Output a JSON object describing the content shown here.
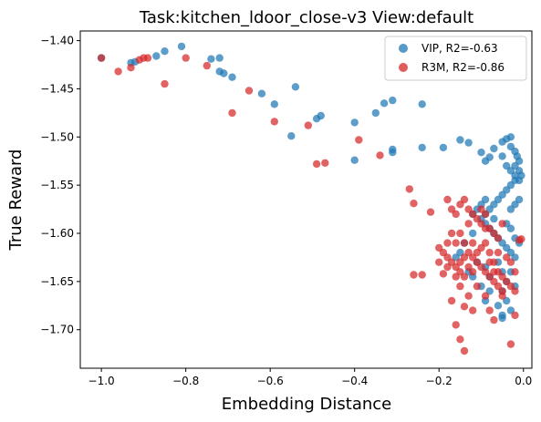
{
  "chart_data": {
    "type": "scatter",
    "title": "Task:kitchen_ldoor_close-v3 View:default",
    "xlabel": "Embedding Distance",
    "ylabel": "True Reward",
    "xlim": [
      -1.05,
      0.02
    ],
    "ylim": [
      -1.74,
      -1.39
    ],
    "xticks": [
      -1.0,
      -0.8,
      -0.6,
      -0.4,
      -0.2,
      0.0
    ],
    "xtick_labels": [
      "−1.0",
      "−0.8",
      "−0.6",
      "−0.4",
      "−0.2",
      "0.0"
    ],
    "yticks": [
      -1.4,
      -1.45,
      -1.5,
      -1.55,
      -1.6,
      -1.65,
      -1.7
    ],
    "ytick_labels": [
      "−1.40",
      "−1.45",
      "−1.50",
      "−1.55",
      "−1.60",
      "−1.65",
      "−1.70"
    ],
    "grid": false,
    "legend": "top-right",
    "series": [
      {
        "name": "VIP, R2=-0.63",
        "color": "#1f77b4",
        "points": [
          [
            -1.0,
            -1.418
          ],
          [
            -0.93,
            -1.423
          ],
          [
            -0.92,
            -1.422
          ],
          [
            -0.87,
            -1.416
          ],
          [
            -0.85,
            -1.411
          ],
          [
            -0.81,
            -1.406
          ],
          [
            -0.74,
            -1.419
          ],
          [
            -0.72,
            -1.418
          ],
          [
            -0.72,
            -1.432
          ],
          [
            -0.71,
            -1.434
          ],
          [
            -0.69,
            -1.438
          ],
          [
            -0.62,
            -1.455
          ],
          [
            -0.59,
            -1.466
          ],
          [
            -0.55,
            -1.499
          ],
          [
            -0.54,
            -1.448
          ],
          [
            -0.49,
            -1.481
          ],
          [
            -0.48,
            -1.478
          ],
          [
            -0.4,
            -1.485
          ],
          [
            -0.4,
            -1.524
          ],
          [
            -0.35,
            -1.475
          ],
          [
            -0.33,
            -1.465
          ],
          [
            -0.31,
            -1.462
          ],
          [
            -0.31,
            -1.516
          ],
          [
            -0.31,
            -1.513
          ],
          [
            -0.24,
            -1.466
          ],
          [
            -0.24,
            -1.511
          ],
          [
            -0.19,
            -1.511
          ],
          [
            -0.15,
            -1.503
          ],
          [
            -0.13,
            -1.506
          ],
          [
            -0.1,
            -1.516
          ],
          [
            -0.09,
            -1.525
          ],
          [
            -0.08,
            -1.521
          ],
          [
            -0.07,
            -1.512
          ],
          [
            -0.05,
            -1.505
          ],
          [
            -0.04,
            -1.502
          ],
          [
            -0.03,
            -1.5
          ],
          [
            -0.02,
            -1.515
          ],
          [
            -0.015,
            -1.52
          ],
          [
            -0.01,
            -1.525
          ],
          [
            -0.03,
            -1.51
          ],
          [
            -0.02,
            -1.53
          ],
          [
            -0.01,
            -1.535
          ],
          [
            -0.005,
            -1.54
          ],
          [
            -0.02,
            -1.545
          ],
          [
            -0.03,
            -1.55
          ],
          [
            -0.04,
            -1.555
          ],
          [
            -0.05,
            -1.56
          ],
          [
            -0.06,
            -1.565
          ],
          [
            -0.07,
            -1.57
          ],
          [
            -0.08,
            -1.575
          ],
          [
            -0.09,
            -1.565
          ],
          [
            -0.1,
            -1.57
          ],
          [
            -0.11,
            -1.575
          ],
          [
            -0.12,
            -1.58
          ],
          [
            -0.1,
            -1.585
          ],
          [
            -0.09,
            -1.59
          ],
          [
            -0.08,
            -1.595
          ],
          [
            -0.07,
            -1.6
          ],
          [
            -0.06,
            -1.605
          ],
          [
            -0.05,
            -1.61
          ],
          [
            -0.04,
            -1.615
          ],
          [
            -0.03,
            -1.62
          ],
          [
            -0.02,
            -1.625
          ],
          [
            -0.06,
            -1.63
          ],
          [
            -0.05,
            -1.64
          ],
          [
            -0.04,
            -1.65
          ],
          [
            -0.05,
            -1.66
          ],
          [
            -0.04,
            -1.67
          ],
          [
            -0.03,
            -1.68
          ],
          [
            -0.05,
            -1.685
          ],
          [
            -0.05,
            -1.688
          ],
          [
            -0.09,
            -1.67
          ],
          [
            -0.08,
            -1.66
          ],
          [
            -0.1,
            -1.655
          ],
          [
            -0.12,
            -1.645
          ],
          [
            -0.13,
            -1.64
          ],
          [
            -0.11,
            -1.63
          ],
          [
            -0.15,
            -1.62
          ],
          [
            -0.14,
            -1.61
          ],
          [
            -0.12,
            -1.6
          ],
          [
            -0.09,
            -1.58
          ],
          [
            -0.07,
            -1.585
          ],
          [
            -0.03,
            -1.595
          ],
          [
            -0.02,
            -1.605
          ],
          [
            -0.01,
            -1.61
          ],
          [
            -0.02,
            -1.57
          ],
          [
            -0.01,
            -1.565
          ],
          [
            -0.03,
            -1.575
          ],
          [
            -0.04,
            -1.59
          ],
          [
            -0.03,
            -1.64
          ],
          [
            -0.02,
            -1.655
          ],
          [
            -0.06,
            -1.675
          ],
          [
            -0.08,
            -1.645
          ],
          [
            -0.09,
            -1.635
          ],
          [
            -0.16,
            -1.625
          ],
          [
            -0.05,
            -1.52
          ],
          [
            -0.04,
            -1.53
          ],
          [
            -0.03,
            -1.535
          ],
          [
            -0.02,
            -1.54
          ],
          [
            -0.01,
            -1.545
          ]
        ]
      },
      {
        "name": "R3M, R2=-0.86",
        "color": "#d62728",
        "points": [
          [
            -1.0,
            -1.418
          ],
          [
            -0.96,
            -1.432
          ],
          [
            -0.93,
            -1.428
          ],
          [
            -0.91,
            -1.42
          ],
          [
            -0.9,
            -1.418
          ],
          [
            -0.89,
            -1.418
          ],
          [
            -0.85,
            -1.445
          ],
          [
            -0.8,
            -1.418
          ],
          [
            -0.75,
            -1.426
          ],
          [
            -0.69,
            -1.475
          ],
          [
            -0.65,
            -1.452
          ],
          [
            -0.59,
            -1.484
          ],
          [
            -0.51,
            -1.488
          ],
          [
            -0.49,
            -1.528
          ],
          [
            -0.47,
            -1.527
          ],
          [
            -0.39,
            -1.503
          ],
          [
            -0.34,
            -1.519
          ],
          [
            -0.27,
            -1.554
          ],
          [
            -0.26,
            -1.569
          ],
          [
            -0.26,
            -1.643
          ],
          [
            -0.24,
            -1.643
          ],
          [
            -0.22,
            -1.578
          ],
          [
            -0.2,
            -1.615
          ],
          [
            -0.19,
            -1.642
          ],
          [
            -0.18,
            -1.61
          ],
          [
            -0.18,
            -1.565
          ],
          [
            -0.17,
            -1.575
          ],
          [
            -0.16,
            -1.58
          ],
          [
            -0.15,
            -1.57
          ],
          [
            -0.14,
            -1.565
          ],
          [
            -0.13,
            -1.575
          ],
          [
            -0.12,
            -1.58
          ],
          [
            -0.11,
            -1.585
          ],
          [
            -0.1,
            -1.59
          ],
          [
            -0.09,
            -1.58
          ],
          [
            -0.08,
            -1.595
          ],
          [
            -0.07,
            -1.6
          ],
          [
            -0.15,
            -1.6
          ],
          [
            -0.14,
            -1.61
          ],
          [
            -0.13,
            -1.62
          ],
          [
            -0.12,
            -1.625
          ],
          [
            -0.11,
            -1.63
          ],
          [
            -0.1,
            -1.635
          ],
          [
            -0.09,
            -1.64
          ],
          [
            -0.08,
            -1.645
          ],
          [
            -0.07,
            -1.65
          ],
          [
            -0.06,
            -1.655
          ],
          [
            -0.05,
            -1.66
          ],
          [
            -0.19,
            -1.62
          ],
          [
            -0.18,
            -1.625
          ],
          [
            -0.17,
            -1.63
          ],
          [
            -0.16,
            -1.635
          ],
          [
            -0.15,
            -1.64
          ],
          [
            -0.14,
            -1.645
          ],
          [
            -0.13,
            -1.635
          ],
          [
            -0.12,
            -1.64
          ],
          [
            -0.11,
            -1.62
          ],
          [
            -0.1,
            -1.615
          ],
          [
            -0.09,
            -1.61
          ],
          [
            -0.08,
            -1.62
          ],
          [
            -0.07,
            -1.63
          ],
          [
            -0.06,
            -1.64
          ],
          [
            -0.05,
            -1.645
          ],
          [
            -0.04,
            -1.65
          ],
          [
            -0.03,
            -1.655
          ],
          [
            -0.02,
            -1.66
          ],
          [
            -0.17,
            -1.67
          ],
          [
            -0.14,
            -1.676
          ],
          [
            -0.12,
            -1.68
          ],
          [
            -0.08,
            -1.68
          ],
          [
            -0.07,
            -1.69
          ],
          [
            -0.05,
            -1.665
          ],
          [
            -0.02,
            -1.685
          ],
          [
            -0.16,
            -1.695
          ],
          [
            -0.15,
            -1.71
          ],
          [
            -0.14,
            -1.722
          ],
          [
            -0.03,
            -1.715
          ],
          [
            -0.01,
            -1.607
          ],
          [
            -0.005,
            -1.606
          ],
          [
            -0.15,
            -1.655
          ],
          [
            -0.13,
            -1.665
          ],
          [
            -0.11,
            -1.655
          ],
          [
            -0.09,
            -1.665
          ],
          [
            -0.06,
            -1.62
          ],
          [
            -0.04,
            -1.625
          ],
          [
            -0.16,
            -1.645
          ],
          [
            -0.18,
            -1.635
          ],
          [
            -0.2,
            -1.63
          ],
          [
            -0.13,
            -1.59
          ],
          [
            -0.1,
            -1.575
          ],
          [
            -0.09,
            -1.595
          ],
          [
            -0.06,
            -1.605
          ],
          [
            -0.05,
            -1.59
          ],
          [
            -0.12,
            -1.61
          ],
          [
            -0.16,
            -1.61
          ],
          [
            -0.17,
            -1.6
          ],
          [
            -0.08,
            -1.63
          ],
          [
            -0.07,
            -1.64
          ],
          [
            -0.03,
            -1.63
          ],
          [
            -0.02,
            -1.64
          ],
          [
            -0.14,
            -1.625
          ],
          [
            -0.15,
            -1.63
          ]
        ]
      }
    ]
  }
}
